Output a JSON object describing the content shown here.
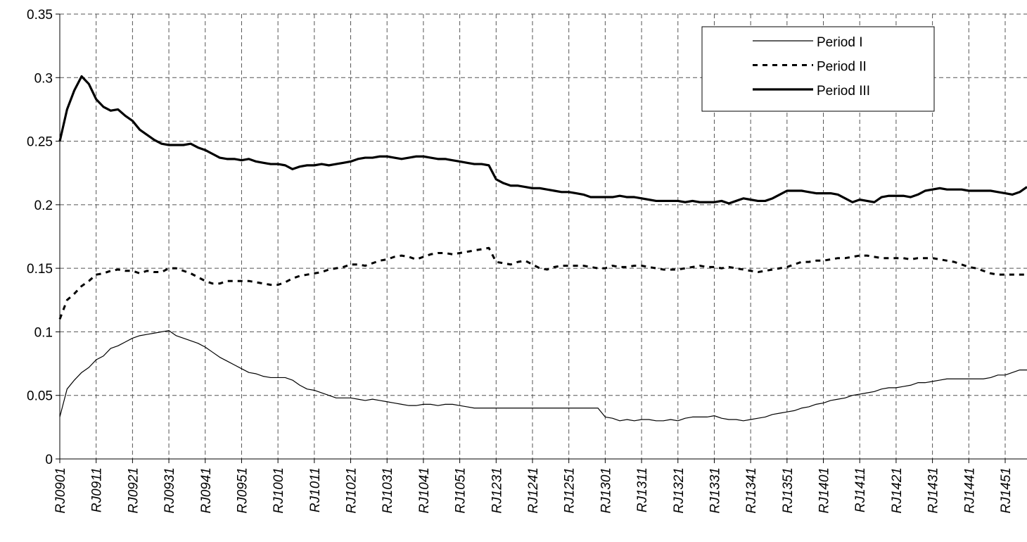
{
  "chart_data": {
    "type": "line",
    "categories": [
      "RJ0901",
      null,
      null,
      null,
      null,
      "RJ0911",
      null,
      null,
      null,
      null,
      "RJ0921",
      null,
      null,
      null,
      null,
      "RJ0931",
      null,
      null,
      null,
      null,
      "RJ0941",
      null,
      null,
      null,
      null,
      "RJ0951",
      null,
      null,
      null,
      null,
      "RJ1001",
      null,
      null,
      null,
      null,
      "RJ1011",
      null,
      null,
      null,
      null,
      "RJ1021",
      null,
      null,
      null,
      null,
      "RJ1031",
      null,
      null,
      null,
      null,
      "RJ1041",
      null,
      null,
      null,
      null,
      "RJ1051",
      null,
      null,
      null,
      null,
      "RJ1231",
      null,
      null,
      null,
      null,
      "RJ1241",
      null,
      null,
      null,
      null,
      "RJ1251",
      null,
      null,
      null,
      null,
      "RJ1301",
      null,
      null,
      null,
      null,
      "RJ1311",
      null,
      null,
      null,
      null,
      "RJ1321",
      null,
      null,
      null,
      null,
      "RJ1331",
      null,
      null,
      null,
      null,
      "RJ1341",
      null,
      null,
      null,
      null,
      "RJ1351",
      null,
      null,
      null,
      null,
      "RJ1401",
      null,
      null,
      null,
      null,
      "RJ1411",
      null,
      null,
      null,
      null,
      "RJ1421",
      null,
      null,
      null,
      null,
      "RJ1431",
      null,
      null,
      null,
      null,
      "RJ1441",
      null,
      null,
      null,
      null,
      "RJ1451",
      null,
      null,
      null
    ],
    "series": [
      {
        "name": "Period I",
        "color": "#000000",
        "line_style": "solid",
        "line_width": 1.2,
        "values": [
          0.033,
          0.055,
          0.062,
          0.068,
          0.072,
          0.078,
          0.081,
          0.087,
          0.089,
          0.092,
          0.095,
          0.097,
          0.098,
          0.099,
          0.1,
          0.101,
          0.097,
          0.095,
          0.093,
          0.091,
          0.088,
          0.084,
          0.08,
          0.077,
          0.074,
          0.071,
          0.068,
          0.067,
          0.065,
          0.064,
          0.064,
          0.064,
          0.062,
          0.058,
          0.055,
          0.054,
          0.052,
          0.05,
          0.048,
          0.048,
          0.048,
          0.047,
          0.046,
          0.047,
          0.046,
          0.045,
          0.044,
          0.043,
          0.042,
          0.042,
          0.043,
          0.043,
          0.042,
          0.043,
          0.043,
          0.042,
          0.041,
          0.04,
          0.04,
          0.04,
          0.04,
          0.04,
          0.04,
          0.04,
          0.04,
          0.04,
          0.04,
          0.04,
          0.04,
          0.04,
          0.04,
          0.04,
          0.04,
          0.04,
          0.04,
          0.033,
          0.032,
          0.03,
          0.031,
          0.03,
          0.031,
          0.031,
          0.03,
          0.03,
          0.031,
          0.03,
          0.032,
          0.033,
          0.033,
          0.033,
          0.034,
          0.032,
          0.031,
          0.031,
          0.03,
          0.031,
          0.032,
          0.033,
          0.035,
          0.036,
          0.037,
          0.038,
          0.04,
          0.041,
          0.043,
          0.044,
          0.046,
          0.047,
          0.048,
          0.05,
          0.051,
          0.052,
          0.053,
          0.055,
          0.056,
          0.056,
          0.057,
          0.058,
          0.06,
          0.06,
          0.061,
          0.062,
          0.063,
          0.063,
          0.063,
          0.063,
          0.063,
          0.063,
          0.064,
          0.066,
          0.066,
          0.068,
          0.07,
          0.07
        ]
      },
      {
        "name": "Period II",
        "color": "#000000",
        "line_style": "dashed",
        "line_width": 3,
        "values": [
          0.11,
          0.125,
          0.13,
          0.136,
          0.14,
          0.145,
          0.146,
          0.148,
          0.149,
          0.148,
          0.148,
          0.146,
          0.148,
          0.147,
          0.147,
          0.15,
          0.15,
          0.148,
          0.146,
          0.143,
          0.14,
          0.138,
          0.138,
          0.14,
          0.14,
          0.14,
          0.14,
          0.139,
          0.138,
          0.137,
          0.137,
          0.139,
          0.142,
          0.144,
          0.145,
          0.146,
          0.147,
          0.149,
          0.15,
          0.151,
          0.153,
          0.153,
          0.152,
          0.154,
          0.156,
          0.157,
          0.159,
          0.16,
          0.159,
          0.157,
          0.159,
          0.161,
          0.162,
          0.162,
          0.161,
          0.162,
          0.163,
          0.164,
          0.165,
          0.166,
          0.155,
          0.154,
          0.153,
          0.155,
          0.156,
          0.153,
          0.15,
          0.149,
          0.151,
          0.152,
          0.152,
          0.152,
          0.152,
          0.151,
          0.15,
          0.15,
          0.152,
          0.151,
          0.151,
          0.152,
          0.152,
          0.151,
          0.15,
          0.149,
          0.149,
          0.149,
          0.15,
          0.151,
          0.152,
          0.151,
          0.151,
          0.15,
          0.151,
          0.15,
          0.149,
          0.148,
          0.147,
          0.148,
          0.149,
          0.15,
          0.151,
          0.153,
          0.155,
          0.155,
          0.156,
          0.156,
          0.157,
          0.158,
          0.158,
          0.159,
          0.16,
          0.16,
          0.159,
          0.158,
          0.158,
          0.158,
          0.158,
          0.157,
          0.158,
          0.158,
          0.158,
          0.157,
          0.156,
          0.155,
          0.153,
          0.151,
          0.15,
          0.148,
          0.146,
          0.145,
          0.145,
          0.145,
          0.145,
          0.145
        ]
      },
      {
        "name": "Period III",
        "color": "#000000",
        "line_style": "solid",
        "line_width": 3.2,
        "values": [
          0.25,
          0.275,
          0.29,
          0.301,
          0.295,
          0.283,
          0.277,
          0.274,
          0.275,
          0.27,
          0.266,
          0.259,
          0.255,
          0.251,
          0.248,
          0.247,
          0.247,
          0.247,
          0.248,
          0.245,
          0.243,
          0.24,
          0.237,
          0.236,
          0.236,
          0.235,
          0.236,
          0.234,
          0.233,
          0.232,
          0.232,
          0.231,
          0.228,
          0.23,
          0.231,
          0.231,
          0.232,
          0.231,
          0.232,
          0.233,
          0.234,
          0.236,
          0.237,
          0.237,
          0.238,
          0.238,
          0.237,
          0.236,
          0.237,
          0.238,
          0.238,
          0.237,
          0.236,
          0.236,
          0.235,
          0.234,
          0.233,
          0.232,
          0.232,
          0.231,
          0.22,
          0.217,
          0.215,
          0.215,
          0.214,
          0.213,
          0.213,
          0.212,
          0.211,
          0.21,
          0.21,
          0.209,
          0.208,
          0.206,
          0.206,
          0.206,
          0.206,
          0.207,
          0.206,
          0.206,
          0.205,
          0.204,
          0.203,
          0.203,
          0.203,
          0.203,
          0.202,
          0.203,
          0.202,
          0.202,
          0.202,
          0.203,
          0.201,
          0.203,
          0.205,
          0.204,
          0.203,
          0.203,
          0.205,
          0.208,
          0.211,
          0.211,
          0.211,
          0.21,
          0.209,
          0.209,
          0.209,
          0.208,
          0.205,
          0.202,
          0.204,
          0.203,
          0.202,
          0.206,
          0.207,
          0.207,
          0.207,
          0.206,
          0.208,
          0.211,
          0.212,
          0.213,
          0.212,
          0.212,
          0.212,
          0.211,
          0.211,
          0.211,
          0.211,
          0.21,
          0.209,
          0.208,
          0.21,
          0.214
        ]
      }
    ],
    "ylim": [
      0,
      0.35
    ],
    "yticks": [
      0,
      0.05,
      0.1,
      0.15,
      0.2,
      0.25,
      0.3,
      0.35
    ],
    "grid": true,
    "legend": "top-right"
  }
}
